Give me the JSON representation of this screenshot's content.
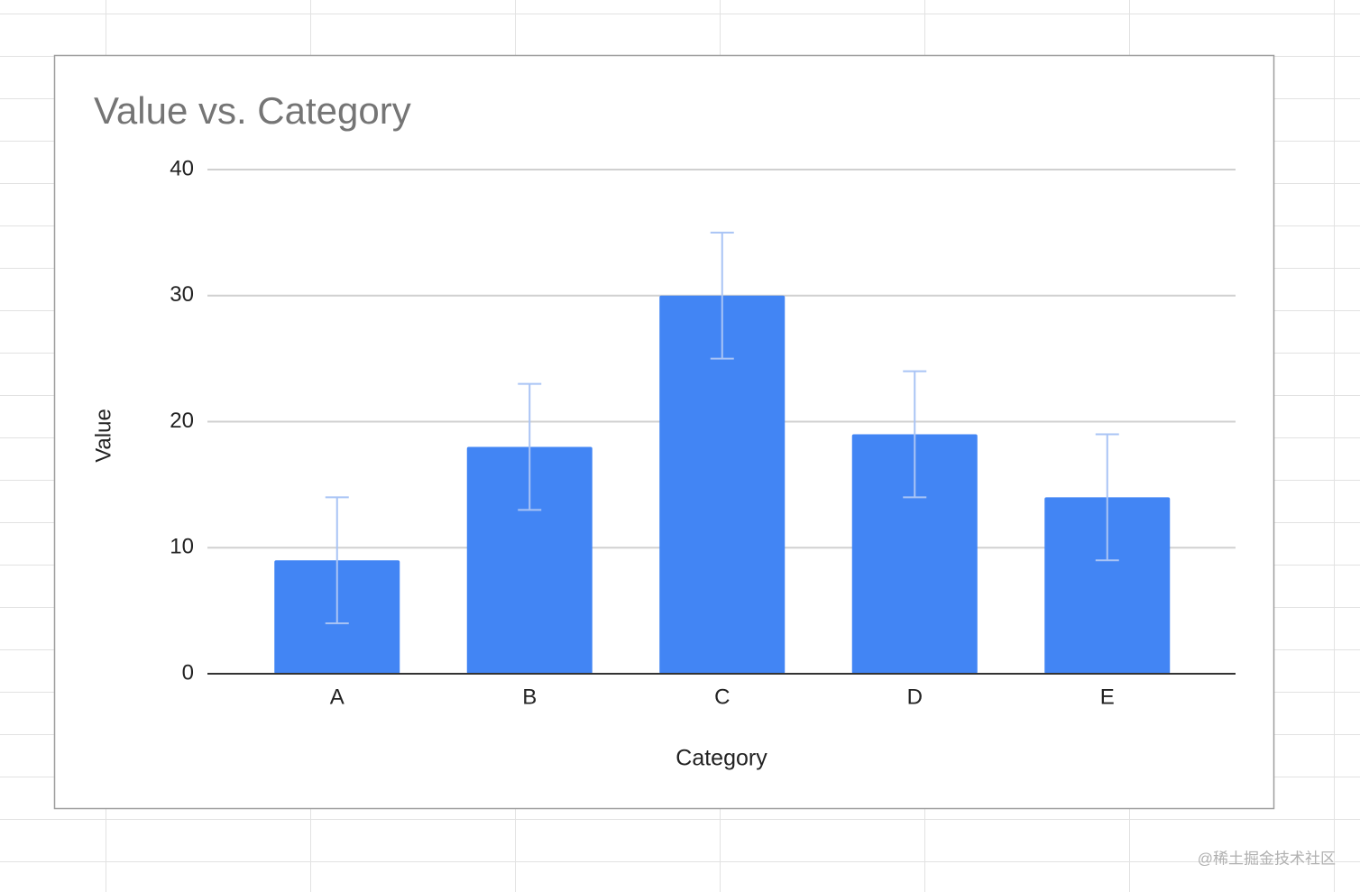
{
  "chart_data": {
    "type": "bar",
    "title": "Value vs. Category",
    "x_label": "Category",
    "y_label": "Value",
    "categories": [
      "A",
      "B",
      "C",
      "D",
      "E"
    ],
    "series": [
      {
        "name": "Value",
        "color": "#4285f4",
        "values": [
          9,
          18,
          30,
          19,
          14
        ],
        "errors": [
          5,
          5,
          5,
          5,
          5
        ],
        "error_color": "#a9c4f5"
      }
    ],
    "ylim": [
      0,
      40
    ],
    "yticks": [
      0,
      10,
      20,
      30,
      40
    ],
    "grid": true
  },
  "watermark": "@稀土掘金技术社区"
}
